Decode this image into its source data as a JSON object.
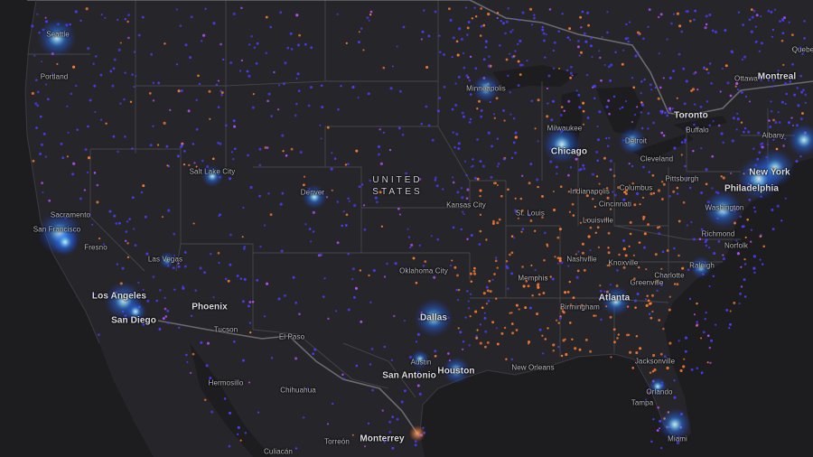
{
  "map": {
    "country_label": [
      "UNITED",
      "STATES"
    ],
    "cities_us": [
      "Seattle",
      "Portland",
      "Minneapolis",
      "Milwaukee",
      "Chicago",
      "Detroit",
      "Cleveland",
      "Buffalo",
      "Albany",
      "New York",
      "Philadelphia",
      "Pittsburgh",
      "Columbus",
      "Indianapolis",
      "Cincinnati",
      "Washington",
      "Richmond",
      "Norfolk",
      "Raleigh",
      "Charlotte",
      "Greenville",
      "Atlanta",
      "Knoxville",
      "Nashville",
      "Louisville",
      "St. Louis",
      "Kansas City",
      "Denver",
      "Salt Lake City",
      "Sacramento",
      "San Francisco",
      "Fresno",
      "Las Vegas",
      "Los Angeles",
      "San Diego",
      "Phoenix",
      "Tucson",
      "El Paso",
      "Oklahoma City",
      "Dallas",
      "Austin",
      "San Antonio",
      "Houston",
      "New Orleans",
      "Memphis",
      "Birmingham",
      "Jacksonville",
      "Orlando",
      "Tampa",
      "Miami"
    ],
    "cities_other": [
      "Toronto",
      "Ottawa",
      "Montreal",
      "Quebec",
      "Hermosillo",
      "Chihuahua",
      "Torreón",
      "Monterrey",
      "Culiacán"
    ],
    "colors": {
      "background": "#1f1f22",
      "land": "#26262a",
      "water": "#1d1d20",
      "boundary": "#4a4a50",
      "dot_blue": "#4a3cff",
      "dot_purple": "#b84dff",
      "dot_orange": "#ff7a2e",
      "glow": "#2a8cff"
    }
  }
}
